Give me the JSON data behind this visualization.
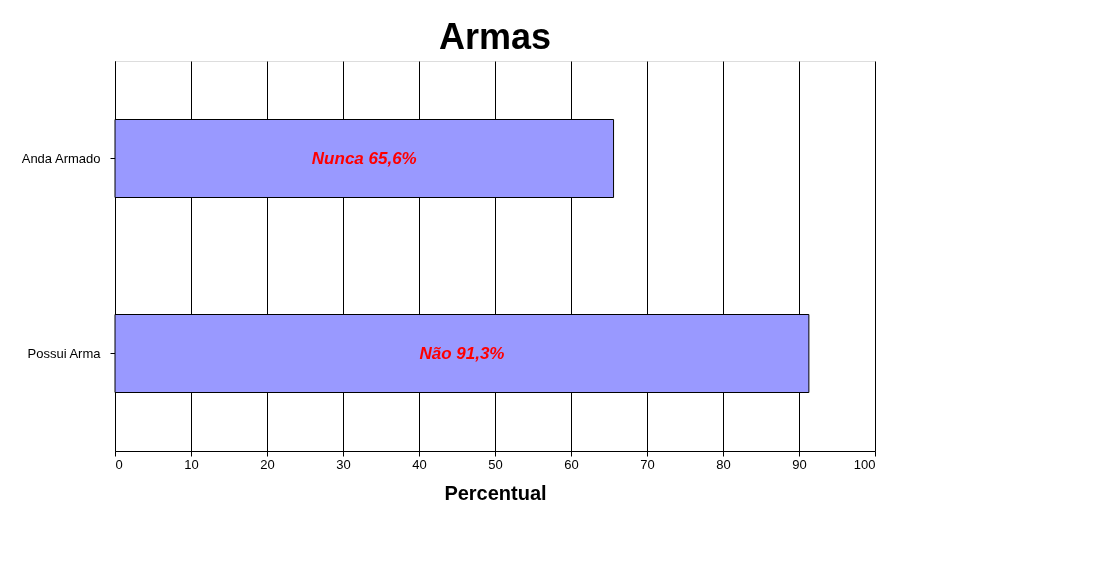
{
  "chart_data": {
    "type": "bar",
    "orientation": "horizontal",
    "title": "Armas",
    "xlabel": "Percentual",
    "categories": [
      "Anda Armado",
      "Possui Arma"
    ],
    "values": [
      65.6,
      91.3
    ],
    "value_labels": [
      "Nunca 65,6%",
      "Não 91,3%"
    ],
    "color": "#9999ff",
    "xlim": [
      0,
      100
    ],
    "xticks": [
      0,
      10,
      20,
      30,
      40,
      50,
      60,
      70,
      80,
      90,
      100
    ],
    "grid": "x"
  }
}
